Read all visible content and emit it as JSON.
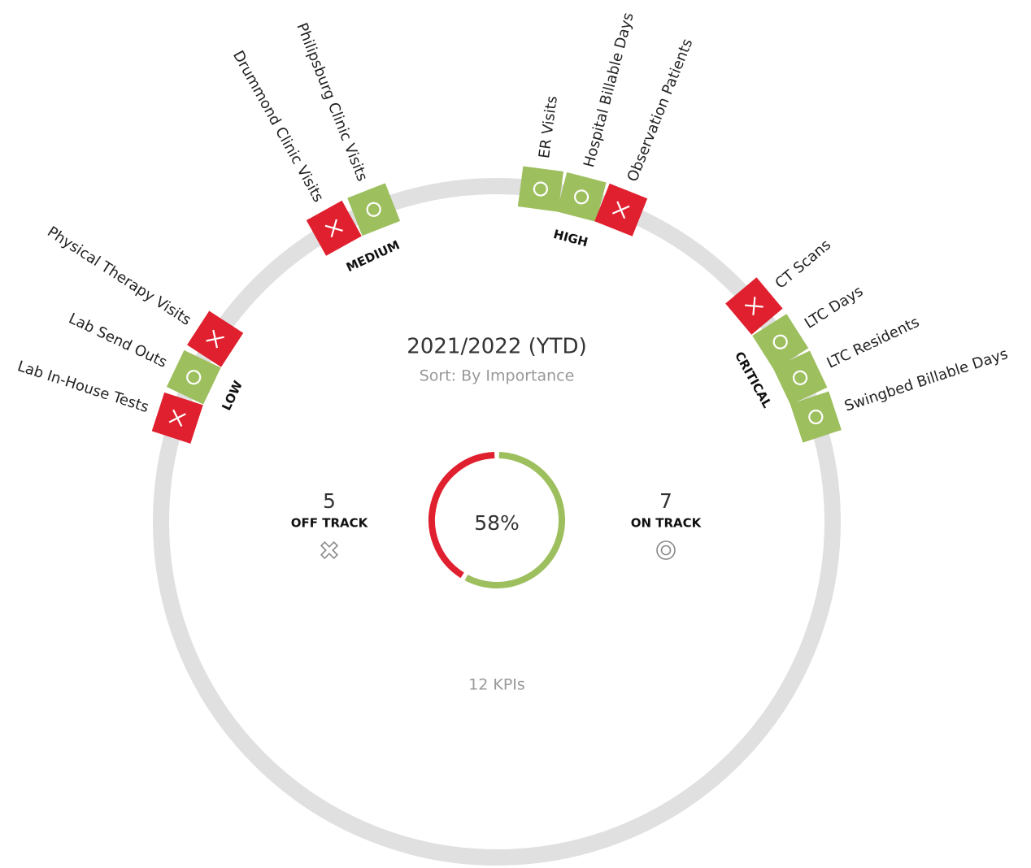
{
  "header": {
    "title": "2021/2022 (YTD)",
    "sort": "Sort: By Importance"
  },
  "summary": {
    "off_track": {
      "count": 5,
      "label": "OFF TRACK"
    },
    "on_track": {
      "count": 7,
      "label": "ON TRACK"
    },
    "percent": "58%",
    "total": "12 KPIs"
  },
  "colors": {
    "off": "#e0202e",
    "on": "#9dbf5e"
  },
  "groups": [
    {
      "name": "LOW",
      "kpis": [
        {
          "name": "Lab In-House Tests",
          "status": "off"
        },
        {
          "name": "Lab Send Outs",
          "status": "on"
        },
        {
          "name": "Physical Therapy Visits",
          "status": "off"
        }
      ]
    },
    {
      "name": "MEDIUM",
      "kpis": [
        {
          "name": "Drummond Clinic Visits",
          "status": "off"
        },
        {
          "name": "Philipsburg Clinic Visits",
          "status": "on"
        }
      ]
    },
    {
      "name": "HIGH",
      "kpis": [
        {
          "name": "ER Visits",
          "status": "on"
        },
        {
          "name": "Hospital Billable Days",
          "status": "on"
        },
        {
          "name": "Observation Patients",
          "status": "off"
        }
      ]
    },
    {
      "name": "CRITICAL",
      "kpis": [
        {
          "name": "CT Scans",
          "status": "off"
        },
        {
          "name": "LTC Days",
          "status": "on"
        },
        {
          "name": "LTC Residents",
          "status": "on"
        },
        {
          "name": "Swingbed Billable Days",
          "status": "on"
        }
      ]
    }
  ]
}
